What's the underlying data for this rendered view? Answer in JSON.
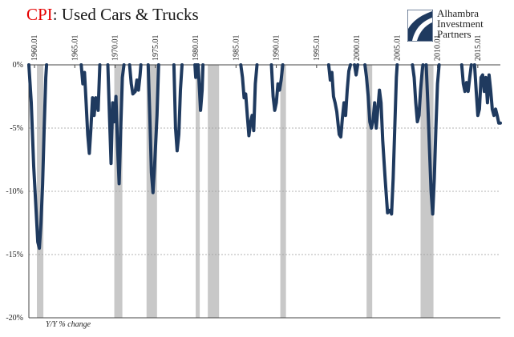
{
  "title": {
    "accent": "CPI",
    "rest": ": Used Cars & Trucks"
  },
  "logo": {
    "lines": [
      "Alhambra",
      "Investment",
      "Partners"
    ],
    "icon": "alhambra-swoosh-icon"
  },
  "footnote": "Y/Y % change",
  "chart_data": {
    "type": "line",
    "title": "CPI: Used Cars & Trucks",
    "ylabel": "Y/Y % change",
    "xlim": [
      1959.3,
      2017.8
    ],
    "ylim": [
      -20,
      0
    ],
    "y_ticks": [
      0,
      -5,
      -10,
      -15,
      -20
    ],
    "y_tick_labels": [
      "0%",
      "-5%",
      "-10%",
      "-15%",
      "-20%"
    ],
    "x_ticks": [
      1960,
      1965,
      1970,
      1975,
      1980,
      1985,
      1990,
      1995,
      2000,
      2005,
      2010,
      2015
    ],
    "x_tick_labels": [
      "1960.01",
      "1965.01",
      "1970.01",
      "1975.01",
      "1980.01",
      "1985.01",
      "1990.01",
      "1995.01",
      "2000.01",
      "2005.01",
      "2010.01",
      "2015.01"
    ],
    "grid": "horizontal dashed",
    "recession_color": "#c8c8c8",
    "line_color": "#1f3a5f",
    "recessions": [
      [
        1960.3,
        1961.1
      ],
      [
        1969.9,
        1970.9
      ],
      [
        1973.9,
        1975.2
      ],
      [
        1980.0,
        1980.5
      ],
      [
        1981.5,
        1982.9
      ],
      [
        1990.5,
        1991.2
      ],
      [
        2001.2,
        2001.9
      ],
      [
        2007.9,
        2009.5
      ]
    ],
    "segments": [
      [
        [
          1959.3,
          0
        ],
        [
          1959.6,
          -3.0
        ],
        [
          1959.9,
          -8.0
        ],
        [
          1960.2,
          -11.5
        ],
        [
          1960.4,
          -14.0
        ],
        [
          1960.6,
          -14.5
        ],
        [
          1960.8,
          -12.5
        ],
        [
          1961.0,
          -9.5
        ],
        [
          1961.2,
          -5.0
        ],
        [
          1961.4,
          -1.0
        ],
        [
          1961.5,
          0
        ]
      ],
      [
        [
          1965.8,
          0
        ],
        [
          1966.0,
          -1.5
        ],
        [
          1966.2,
          -0.6
        ],
        [
          1966.4,
          -3.0
        ],
        [
          1966.6,
          -5.5
        ],
        [
          1966.8,
          -7.0
        ],
        [
          1967.0,
          -5.0
        ],
        [
          1967.2,
          -2.6
        ],
        [
          1967.4,
          -4.0
        ],
        [
          1967.6,
          -2.6
        ],
        [
          1967.9,
          -3.6
        ],
        [
          1968.1,
          0
        ]
      ],
      [
        [
          1969.1,
          0
        ],
        [
          1969.3,
          -4.0
        ],
        [
          1969.5,
          -7.8
        ],
        [
          1969.7,
          -3.0
        ],
        [
          1969.9,
          -4.5
        ],
        [
          1970.1,
          -2.5
        ],
        [
          1970.3,
          -6.5
        ],
        [
          1970.5,
          -9.4
        ],
        [
          1970.7,
          -5.0
        ],
        [
          1970.9,
          -1.0
        ],
        [
          1971.1,
          0
        ]
      ],
      [
        [
          1971.8,
          0
        ],
        [
          1972.0,
          -1.5
        ],
        [
          1972.2,
          -2.3
        ],
        [
          1972.5,
          -2.1
        ],
        [
          1972.7,
          -1.2
        ],
        [
          1972.9,
          -2.0
        ],
        [
          1973.1,
          -0.8
        ],
        [
          1973.2,
          0
        ]
      ],
      [
        [
          1974.1,
          0
        ],
        [
          1974.3,
          -4.0
        ],
        [
          1974.5,
          -8.5
        ],
        [
          1974.7,
          -10.1
        ],
        [
          1974.9,
          -8.0
        ],
        [
          1975.2,
          -4.0
        ],
        [
          1975.4,
          0
        ]
      ],
      [
        [
          1977.3,
          0
        ],
        [
          1977.5,
          -5.0
        ],
        [
          1977.7,
          -6.8
        ],
        [
          1977.9,
          -5.5
        ],
        [
          1978.1,
          -2.0
        ],
        [
          1978.3,
          0
        ]
      ],
      [
        [
          1979.9,
          0
        ],
        [
          1980.0,
          -1.0
        ],
        [
          1980.1,
          0
        ]
      ],
      [
        [
          1980.3,
          0
        ],
        [
          1980.4,
          -1.2
        ],
        [
          1980.6,
          -3.6
        ],
        [
          1980.8,
          -2.0
        ],
        [
          1980.9,
          0
        ]
      ],
      [
        [
          1985.6,
          0
        ],
        [
          1985.8,
          -1.0
        ],
        [
          1986.0,
          -2.6
        ],
        [
          1986.2,
          -2.3
        ],
        [
          1986.4,
          -4.0
        ],
        [
          1986.6,
          -5.6
        ],
        [
          1986.8,
          -4.6
        ],
        [
          1987.0,
          -4.0
        ],
        [
          1987.2,
          -5.2
        ],
        [
          1987.4,
          -1.5
        ],
        [
          1987.6,
          0
        ]
      ],
      [
        [
          1989.4,
          0
        ],
        [
          1989.6,
          -2.5
        ],
        [
          1989.8,
          -3.6
        ],
        [
          1990.0,
          -3.0
        ],
        [
          1990.2,
          -1.5
        ],
        [
          1990.4,
          -2.0
        ],
        [
          1990.6,
          -1.2
        ],
        [
          1990.8,
          0
        ]
      ],
      [
        [
          1996.5,
          0
        ],
        [
          1996.7,
          -1.2
        ],
        [
          1996.9,
          -0.6
        ],
        [
          1997.1,
          -2.5
        ],
        [
          1997.3,
          -3.0
        ],
        [
          1997.5,
          -3.7
        ],
        [
          1997.8,
          -5.5
        ],
        [
          1998.0,
          -5.7
        ],
        [
          1998.2,
          -4.2
        ],
        [
          1998.4,
          -3.0
        ],
        [
          1998.6,
          -4.0
        ],
        [
          1998.8,
          -2.0
        ],
        [
          1999.0,
          -0.5
        ],
        [
          1999.2,
          0
        ]
      ],
      [
        [
          1999.7,
          0
        ],
        [
          1999.9,
          -0.8
        ],
        [
          2000.1,
          0
        ]
      ],
      [
        [
          2001.0,
          0
        ],
        [
          2001.2,
          -1.0
        ],
        [
          2001.4,
          -2.5
        ],
        [
          2001.6,
          -4.5
        ],
        [
          2001.8,
          -5.0
        ],
        [
          2002.0,
          -4.4
        ],
        [
          2002.2,
          -3.0
        ],
        [
          2002.4,
          -5.0
        ],
        [
          2002.6,
          -3.5
        ],
        [
          2002.8,
          -2.0
        ],
        [
          2003.0,
          -3.0
        ],
        [
          2003.2,
          -6.0
        ],
        [
          2003.5,
          -9.0
        ],
        [
          2003.8,
          -11.7
        ],
        [
          2004.1,
          -11.5
        ],
        [
          2004.3,
          -11.8
        ],
        [
          2004.5,
          -9.0
        ],
        [
          2004.7,
          -5.0
        ],
        [
          2004.9,
          -1.0
        ],
        [
          2005.0,
          0
        ]
      ],
      [
        [
          2006.9,
          0
        ],
        [
          2007.1,
          -1.0
        ],
        [
          2007.3,
          -3.0
        ],
        [
          2007.5,
          -4.5
        ],
        [
          2007.7,
          -4.0
        ],
        [
          2007.9,
          -2.0
        ],
        [
          2008.1,
          -0.5
        ],
        [
          2008.2,
          0
        ]
      ],
      [
        [
          2008.6,
          0
        ],
        [
          2008.8,
          -3.0
        ],
        [
          2009.0,
          -6.5
        ],
        [
          2009.2,
          -10.0
        ],
        [
          2009.4,
          -11.8
        ],
        [
          2009.6,
          -9.0
        ],
        [
          2009.8,
          -5.0
        ],
        [
          2010.0,
          -1.5
        ],
        [
          2010.2,
          0
        ]
      ],
      [
        [
          2013.0,
          0
        ],
        [
          2013.2,
          -1.5
        ],
        [
          2013.4,
          -2.1
        ],
        [
          2013.6,
          -1.4
        ],
        [
          2013.8,
          -2.1
        ],
        [
          2014.0,
          -1.0
        ],
        [
          2014.2,
          0
        ]
      ],
      [
        [
          2014.6,
          0
        ],
        [
          2014.8,
          -2.0
        ],
        [
          2015.0,
          -4.0
        ],
        [
          2015.2,
          -3.5
        ],
        [
          2015.4,
          -1.0
        ],
        [
          2015.6,
          -0.8
        ],
        [
          2015.8,
          -2.1
        ],
        [
          2016.0,
          -1.0
        ],
        [
          2016.2,
          -3.0
        ],
        [
          2016.4,
          -0.8
        ],
        [
          2016.6,
          -2.0
        ],
        [
          2016.8,
          -3.5
        ],
        [
          2017.0,
          -4.0
        ],
        [
          2017.2,
          -3.5
        ],
        [
          2017.4,
          -4.0
        ],
        [
          2017.6,
          -4.6
        ],
        [
          2017.8,
          -4.6
        ]
      ]
    ]
  }
}
